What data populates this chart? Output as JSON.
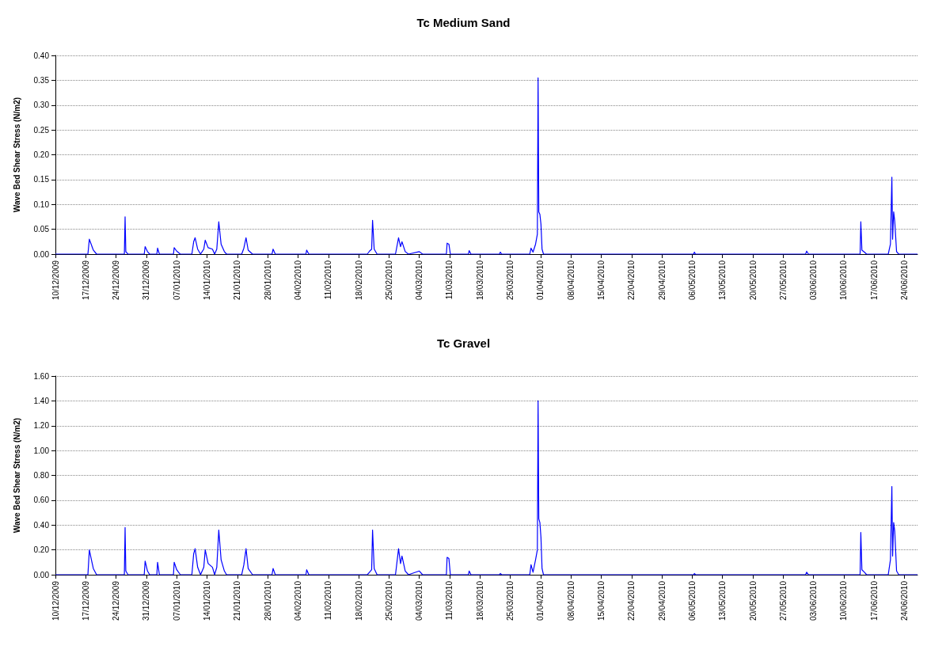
{
  "chart_data": [
    {
      "type": "line",
      "title": "Tc Medium Sand",
      "ylabel": "Wave Bed Shear Stress (N/m2)",
      "grid": "y",
      "marker": "none",
      "line_style": "solid",
      "xlim": [
        "2009-12-10",
        "2010-06-27"
      ],
      "xticks": [
        {
          "value": "2009-12-10",
          "label": "10/12/2009"
        },
        {
          "value": "2009-12-17",
          "label": "17/12/2009"
        },
        {
          "value": "2009-12-24",
          "label": "24/12/2009"
        },
        {
          "value": "2009-12-31",
          "label": "31/12/2009"
        },
        {
          "value": "2010-01-07",
          "label": "07/01/2010"
        },
        {
          "value": "2010-01-14",
          "label": "14/01/2010"
        },
        {
          "value": "2010-01-21",
          "label": "21/01/2010"
        },
        {
          "value": "2010-01-28",
          "label": "28/01/2010"
        },
        {
          "value": "2010-02-04",
          "label": "04/02/2010"
        },
        {
          "value": "2010-02-11",
          "label": "11/02/2010"
        },
        {
          "value": "2010-02-18",
          "label": "18/02/2010"
        },
        {
          "value": "2010-02-25",
          "label": "25/02/2010"
        },
        {
          "value": "2010-03-04",
          "label": "04/03/2010"
        },
        {
          "value": "2010-03-11",
          "label": "11/03/2010"
        },
        {
          "value": "2010-03-18",
          "label": "18/03/2010"
        },
        {
          "value": "2010-03-25",
          "label": "25/03/2010"
        },
        {
          "value": "2010-04-01",
          "label": "01/04/2010"
        },
        {
          "value": "2010-04-08",
          "label": "08/04/2010"
        },
        {
          "value": "2010-04-15",
          "label": "15/04/2010"
        },
        {
          "value": "2010-04-22",
          "label": "22/04/2010"
        },
        {
          "value": "2010-04-29",
          "label": "29/04/2010"
        },
        {
          "value": "2010-05-06",
          "label": "06/05/2010"
        },
        {
          "value": "2010-05-13",
          "label": "13/05/2010"
        },
        {
          "value": "2010-05-20",
          "label": "20/05/2010"
        },
        {
          "value": "2010-05-27",
          "label": "27/05/2010"
        },
        {
          "value": "2010-06-03",
          "label": "03/06/2010"
        },
        {
          "value": "2010-06-10",
          "label": "10/06/2010"
        },
        {
          "value": "2010-06-17",
          "label": "17/06/2010"
        },
        {
          "value": "2010-06-24",
          "label": "24/06/2010"
        }
      ],
      "ylim": [
        0,
        0.4
      ],
      "yticks": [
        {
          "value": 0,
          "label": "0.00"
        },
        {
          "value": 0.05,
          "label": "0.05"
        },
        {
          "value": 0.1,
          "label": "0.10"
        },
        {
          "value": 0.15,
          "label": "0.15"
        },
        {
          "value": 0.2,
          "label": "0.20"
        },
        {
          "value": 0.25,
          "label": "0.25"
        },
        {
          "value": 0.3,
          "label": "0.30"
        },
        {
          "value": 0.35,
          "label": "0.35"
        },
        {
          "value": 0.4,
          "label": "0.40"
        }
      ],
      "x": [
        "2009-12-10",
        "2009-12-17T12:00",
        "2009-12-17T20:00",
        "2009-12-18T06:00",
        "2009-12-18T18:00",
        "2009-12-19T12:00",
        "2009-12-25T22:00",
        "2009-12-26T02:00",
        "2009-12-26T06:00",
        "2009-12-26T18:00",
        "2009-12-30T12:00",
        "2009-12-30T17:00",
        "2009-12-31T06:00",
        "2009-12-31T18:00",
        "2010-01-02T10:00",
        "2010-01-02T14:00",
        "2010-01-03T00:00",
        "2010-01-06T06:00",
        "2010-01-06T10:00",
        "2010-01-07T00:00",
        "2010-01-07T20:00",
        "2010-01-10T12:00",
        "2010-01-10T22:00",
        "2010-01-11T06:00",
        "2010-01-11T20:00",
        "2010-01-12T12:00",
        "2010-01-13T06:00",
        "2010-01-13T14:00",
        "2010-01-14T06:00",
        "2010-01-15T06:00",
        "2010-01-15T18:00",
        "2010-01-16T06:00",
        "2010-01-16T17:00",
        "2010-01-17T06:00",
        "2010-01-18T00:00",
        "2010-01-18T12:00",
        "2010-01-22T00:00",
        "2010-01-22T12:00",
        "2010-01-23T00:00",
        "2010-01-23T12:00",
        "2010-01-24T12:00",
        "2010-01-29T00:00",
        "2010-01-29T06:00",
        "2010-01-29T18:00",
        "2010-02-05T20:00",
        "2010-02-06T00:00",
        "2010-02-06T12:00",
        "2010-02-20T00:00",
        "2010-02-20T12:00",
        "2010-02-21T00:00",
        "2010-02-21T05:00",
        "2010-02-21T14:00",
        "2010-02-22T06:00",
        "2010-02-26T12:00",
        "2010-02-27T05:00",
        "2010-02-27T16:00",
        "2010-02-28T00:00",
        "2010-02-28T18:00",
        "2010-03-01T12:00",
        "2010-03-04T00:00",
        "2010-03-04T18:00",
        "2010-03-10T06:00",
        "2010-03-10T10:00",
        "2010-03-10T20:00",
        "2010-03-11T04:00",
        "2010-03-15T08:00",
        "2010-03-15T12:00",
        "2010-03-15T22:00",
        "2010-03-22T12:00",
        "2010-03-22T17:00",
        "2010-03-23T00:00",
        "2010-03-29T12:00",
        "2010-03-29T19:00",
        "2010-03-30T06:00",
        "2010-03-30T20:00",
        "2010-03-31T06:00",
        "2010-03-31T10:00",
        "2010-03-31T14:00",
        "2010-03-31T20:00",
        "2010-04-01T02:00",
        "2010-04-01T08:00",
        "2010-04-01T16:00",
        "2010-05-06T08:00",
        "2010-05-06T12:00",
        "2010-05-06T18:00",
        "2010-06-01T04:00",
        "2010-06-01T10:00",
        "2010-06-01T20:00",
        "2010-06-13T18:00",
        "2010-06-13T22:00",
        "2010-06-14T04:00",
        "2010-06-14T18:00",
        "2010-06-15T06:00",
        "2010-06-20T06:00",
        "2010-06-20T18:00",
        "2010-06-21T02:00",
        "2010-06-21T06:00",
        "2010-06-21T12:00",
        "2010-06-21T18:00",
        "2010-06-22T04:00",
        "2010-06-22T16:00",
        "2010-06-27"
      ],
      "series": [
        {
          "color": "#0000ff",
          "values": [
            0,
            0,
            0.03,
            0.02,
            0.008,
            0,
            0,
            0.075,
            0.005,
            0,
            0,
            0.015,
            0.005,
            0,
            0,
            0.012,
            0,
            0,
            0.013,
            0.006,
            0,
            0,
            0.025,
            0.033,
            0.01,
            0,
            0.01,
            0.028,
            0.013,
            0.01,
            0,
            0.01,
            0.065,
            0.02,
            0.005,
            0,
            0,
            0.012,
            0.033,
            0.008,
            0,
            0,
            0.01,
            0,
            0,
            0.008,
            0,
            0,
            0.006,
            0.01,
            0.068,
            0.01,
            0,
            0,
            0.033,
            0.015,
            0.025,
            0.005,
            0,
            0.005,
            0,
            0,
            0.022,
            0.02,
            0,
            0,
            0.007,
            0,
            0,
            0.004,
            0,
            0,
            0.012,
            0.004,
            0.02,
            0.04,
            0.355,
            0.085,
            0.08,
            0.06,
            0.01,
            0,
            0,
            0.004,
            0,
            0,
            0.006,
            0,
            0,
            0.065,
            0.008,
            0.004,
            0,
            0,
            0.02,
            0.155,
            0.03,
            0.085,
            0.066,
            0.005,
            0,
            0
          ]
        }
      ]
    },
    {
      "type": "line",
      "title": "Tc Gravel",
      "ylabel": "Wave Bed Shear Stress (N/m2)",
      "grid": "y",
      "marker": "none",
      "line_style": "solid",
      "xlim": [
        "2009-12-10",
        "2010-06-27"
      ],
      "xticks": [
        {
          "value": "2009-12-10",
          "label": "10/12/2009"
        },
        {
          "value": "2009-12-17",
          "label": "17/12/2009"
        },
        {
          "value": "2009-12-24",
          "label": "24/12/2009"
        },
        {
          "value": "2009-12-31",
          "label": "31/12/2009"
        },
        {
          "value": "2010-01-07",
          "label": "07/01/2010"
        },
        {
          "value": "2010-01-14",
          "label": "14/01/2010"
        },
        {
          "value": "2010-01-21",
          "label": "21/01/2010"
        },
        {
          "value": "2010-01-28",
          "label": "28/01/2010"
        },
        {
          "value": "2010-02-04",
          "label": "04/02/2010"
        },
        {
          "value": "2010-02-11",
          "label": "11/02/2010"
        },
        {
          "value": "2010-02-18",
          "label": "18/02/2010"
        },
        {
          "value": "2010-02-25",
          "label": "25/02/2010"
        },
        {
          "value": "2010-03-04",
          "label": "04/03/2010"
        },
        {
          "value": "2010-03-11",
          "label": "11/03/2010"
        },
        {
          "value": "2010-03-18",
          "label": "18/03/2010"
        },
        {
          "value": "2010-03-25",
          "label": "25/03/2010"
        },
        {
          "value": "2010-04-01",
          "label": "01/04/2010"
        },
        {
          "value": "2010-04-08",
          "label": "08/04/2010"
        },
        {
          "value": "2010-04-15",
          "label": "15/04/2010"
        },
        {
          "value": "2010-04-22",
          "label": "22/04/2010"
        },
        {
          "value": "2010-04-29",
          "label": "29/04/2010"
        },
        {
          "value": "2010-05-06",
          "label": "06/05/2010"
        },
        {
          "value": "2010-05-13",
          "label": "13/05/2010"
        },
        {
          "value": "2010-05-20",
          "label": "20/05/2010"
        },
        {
          "value": "2010-05-27",
          "label": "27/05/2010"
        },
        {
          "value": "2010-06-03",
          "label": "03/06/2010"
        },
        {
          "value": "2010-06-10",
          "label": "10/06/2010"
        },
        {
          "value": "2010-06-17",
          "label": "17/06/2010"
        },
        {
          "value": "2010-06-24",
          "label": "24/06/2010"
        }
      ],
      "ylim": [
        0,
        1.6
      ],
      "yticks": [
        {
          "value": 0,
          "label": "0.00"
        },
        {
          "value": 0.2,
          "label": "0.20"
        },
        {
          "value": 0.4,
          "label": "0.40"
        },
        {
          "value": 0.6,
          "label": "0.60"
        },
        {
          "value": 0.8,
          "label": "0.80"
        },
        {
          "value": 1,
          "label": "1.00"
        },
        {
          "value": 1.2,
          "label": "1.20"
        },
        {
          "value": 1.4,
          "label": "1.40"
        },
        {
          "value": 1.6,
          "label": "1.60"
        }
      ],
      "x": [
        "2009-12-10",
        "2009-12-17T12:00",
        "2009-12-17T20:00",
        "2009-12-18T06:00",
        "2009-12-18T18:00",
        "2009-12-19T12:00",
        "2009-12-25T22:00",
        "2009-12-26T02:00",
        "2009-12-26T06:00",
        "2009-12-26T18:00",
        "2009-12-30T12:00",
        "2009-12-30T17:00",
        "2009-12-31T06:00",
        "2009-12-31T18:00",
        "2010-01-02T10:00",
        "2010-01-02T14:00",
        "2010-01-03T00:00",
        "2010-01-06T06:00",
        "2010-01-06T10:00",
        "2010-01-07T00:00",
        "2010-01-07T20:00",
        "2010-01-10T12:00",
        "2010-01-10T22:00",
        "2010-01-11T06:00",
        "2010-01-11T20:00",
        "2010-01-12T12:00",
        "2010-01-13T06:00",
        "2010-01-13T14:00",
        "2010-01-14T06:00",
        "2010-01-15T06:00",
        "2010-01-15T18:00",
        "2010-01-16T06:00",
        "2010-01-16T17:00",
        "2010-01-17T06:00",
        "2010-01-18T00:00",
        "2010-01-18T12:00",
        "2010-01-22T00:00",
        "2010-01-22T12:00",
        "2010-01-23T00:00",
        "2010-01-23T12:00",
        "2010-01-24T12:00",
        "2010-01-29T00:00",
        "2010-01-29T06:00",
        "2010-01-29T18:00",
        "2010-02-05T20:00",
        "2010-02-06T00:00",
        "2010-02-06T12:00",
        "2010-02-20T00:00",
        "2010-02-20T12:00",
        "2010-02-21T00:00",
        "2010-02-21T05:00",
        "2010-02-21T14:00",
        "2010-02-22T06:00",
        "2010-02-26T12:00",
        "2010-02-27T05:00",
        "2010-02-27T16:00",
        "2010-02-28T00:00",
        "2010-02-28T18:00",
        "2010-03-01T12:00",
        "2010-03-04T00:00",
        "2010-03-04T18:00",
        "2010-03-10T06:00",
        "2010-03-10T10:00",
        "2010-03-10T20:00",
        "2010-03-11T04:00",
        "2010-03-15T08:00",
        "2010-03-15T12:00",
        "2010-03-15T22:00",
        "2010-03-22T12:00",
        "2010-03-22T17:00",
        "2010-03-23T00:00",
        "2010-03-29T12:00",
        "2010-03-29T19:00",
        "2010-03-30T06:00",
        "2010-03-30T20:00",
        "2010-03-31T06:00",
        "2010-03-31T10:00",
        "2010-03-31T14:00",
        "2010-03-31T20:00",
        "2010-04-01T02:00",
        "2010-04-01T08:00",
        "2010-04-01T16:00",
        "2010-05-06T08:00",
        "2010-05-06T12:00",
        "2010-05-06T18:00",
        "2010-06-01T04:00",
        "2010-06-01T10:00",
        "2010-06-01T20:00",
        "2010-06-13T18:00",
        "2010-06-13T22:00",
        "2010-06-14T04:00",
        "2010-06-14T18:00",
        "2010-06-15T06:00",
        "2010-06-20T06:00",
        "2010-06-20T18:00",
        "2010-06-21T02:00",
        "2010-06-21T06:00",
        "2010-06-21T12:00",
        "2010-06-21T18:00",
        "2010-06-22T04:00",
        "2010-06-22T16:00",
        "2010-06-27"
      ],
      "series": [
        {
          "color": "#0000ff",
          "values": [
            0,
            0,
            0.2,
            0.13,
            0.05,
            0,
            0,
            0.38,
            0.03,
            0,
            0,
            0.11,
            0.03,
            0,
            0,
            0.1,
            0,
            0,
            0.1,
            0.04,
            0,
            0,
            0.17,
            0.21,
            0.06,
            0,
            0.06,
            0.2,
            0.09,
            0.06,
            0,
            0.06,
            0.36,
            0.12,
            0.03,
            0,
            0,
            0.08,
            0.21,
            0.05,
            0,
            0,
            0.05,
            0,
            0,
            0.04,
            0,
            0,
            0.02,
            0.04,
            0.36,
            0.05,
            0,
            0,
            0.21,
            0.09,
            0.15,
            0.03,
            0,
            0.03,
            0,
            0,
            0.14,
            0.13,
            0,
            0,
            0.03,
            0,
            0,
            0.01,
            0,
            0,
            0.08,
            0.02,
            0.12,
            0.2,
            1.4,
            0.45,
            0.42,
            0.3,
            0.05,
            0,
            0,
            0.01,
            0,
            0,
            0.02,
            0,
            0,
            0.34,
            0.04,
            0.02,
            0,
            0,
            0.12,
            0.71,
            0.15,
            0.42,
            0.35,
            0.03,
            0,
            0
          ]
        }
      ]
    }
  ]
}
